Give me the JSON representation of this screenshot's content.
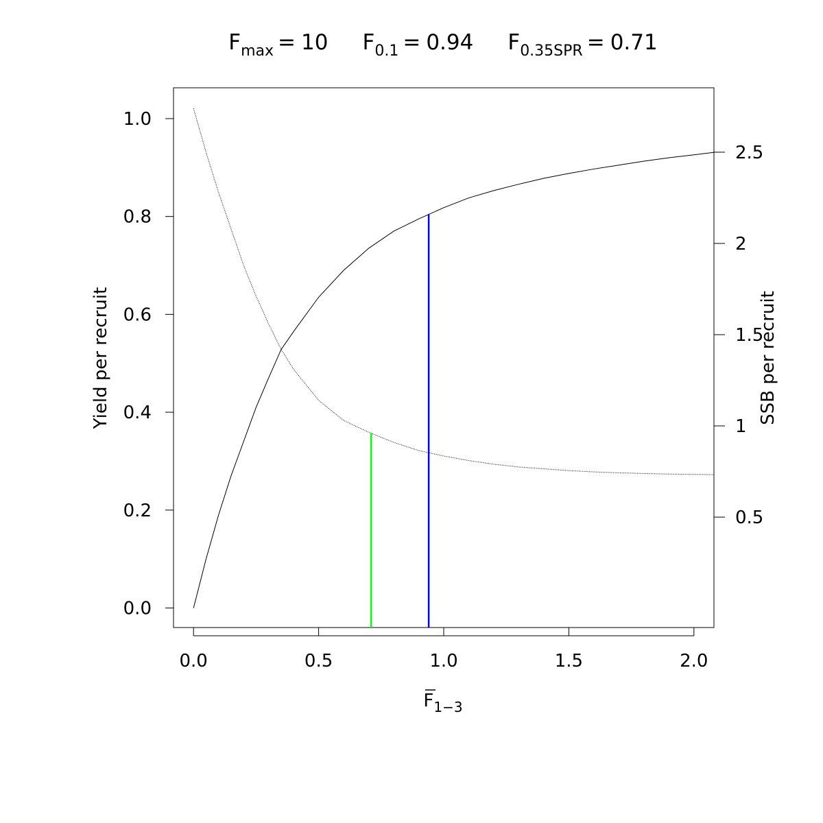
{
  "chart_data": {
    "type": "line",
    "title_parts": [
      {
        "symbol": "F",
        "subscript": "max",
        "equals": "=",
        "value": 10
      },
      {
        "symbol": "F",
        "subscript": "0.1",
        "equals": "=",
        "value": 0.94,
        "line_top": 0.805,
        "line_axis": "y",
        "color": "#0000ff"
      },
      {
        "symbol": "F",
        "subscript": "0.35SPR",
        "equals": "=",
        "value": 0.71,
        "line_top": 0.962,
        "line_axis": "y2",
        "color": "#00ff00"
      }
    ],
    "xlabel": {
      "symbol": "F",
      "subscript": "1−3"
    },
    "ylabel": "Yield per recruit",
    "y2label": "SSB per recruit",
    "x": [
      0,
      0.05,
      0.1,
      0.15,
      0.2,
      0.25,
      0.3,
      0.35,
      0.4,
      0.5,
      0.6,
      0.7,
      0.8,
      0.9,
      1.0,
      1.1,
      1.2,
      1.3,
      1.4,
      1.5,
      1.6,
      1.7,
      1.8,
      1.9,
      2.0,
      2.08
    ],
    "series": [
      {
        "color": "#000000",
        "style": "solid",
        "values": [
          0,
          0.1,
          0.19,
          0.27,
          0.34,
          0.41,
          0.47,
          0.528,
          0.565,
          0.635,
          0.69,
          0.735,
          0.77,
          0.795,
          0.818,
          0.838,
          0.853,
          0.866,
          0.878,
          0.888,
          0.897,
          0.905,
          0.913,
          0.92,
          0.926,
          0.931
        ]
      },
      {
        "color": "#000000",
        "style": "dotted",
        "axis": "y2",
        "values": [
          2.74,
          2.5,
          2.28,
          2.08,
          1.88,
          1.71,
          1.56,
          1.42,
          1.31,
          1.14,
          1.03,
          0.965,
          0.91,
          0.865,
          0.835,
          0.81,
          0.79,
          0.775,
          0.765,
          0.755,
          0.748,
          0.743,
          0.739,
          0.736,
          0.734,
          0.733
        ]
      }
    ],
    "xlim": [
      -0.08,
      2.08
    ],
    "xticks": [
      {
        "value": 0,
        "label": "0.0"
      },
      0.5,
      {
        "value": 1,
        "label": "1.0"
      },
      1.5,
      {
        "value": 2,
        "label": "2.0"
      }
    ],
    "ylim": [
      -0.04,
      1.063
    ],
    "yticks": [
      {
        "value": 0,
        "label": "0.0"
      },
      0.2,
      0.4,
      0.6,
      0.8,
      {
        "value": 1,
        "label": "1.0"
      }
    ],
    "y2lim": [
      -0.105,
      2.853
    ],
    "y2ticks": [
      0.5,
      1,
      1.5,
      2,
      2.5
    ]
  }
}
